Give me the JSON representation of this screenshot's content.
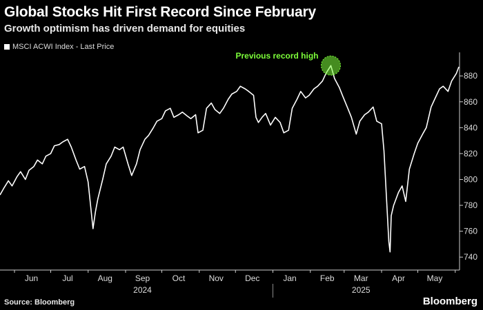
{
  "title": "Global Stocks Hit First Record Since February",
  "subtitle": "Growth optimism has driven demand for equities",
  "legend": {
    "label": "MSCI ACWI Index - Last Price"
  },
  "source": "Source: Bloomberg",
  "brand": "Bloomberg",
  "colors": {
    "background": "#000000",
    "line": "#ffffff",
    "annotation": "#7dff3a",
    "grid": "#3a3a3a"
  },
  "chart_data": {
    "type": "line",
    "title": "Global Stocks Hit First Record Since February",
    "subtitle": "Growth optimism has driven demand for equities",
    "xlabel": "",
    "ylabel": "",
    "ylim": [
      730,
      895
    ],
    "xlim": [
      "2024-05-20",
      "2025-06-04"
    ],
    "y_axis_position": "right",
    "y_ticks": [
      740,
      760,
      780,
      800,
      820,
      840,
      860,
      880
    ],
    "x_month_labels": [
      {
        "date": "2024-06-15",
        "label": "Jun"
      },
      {
        "date": "2024-07-15",
        "label": "Jul"
      },
      {
        "date": "2024-08-15",
        "label": "Aug"
      },
      {
        "date": "2024-09-15",
        "label": "Sep"
      },
      {
        "date": "2024-10-15",
        "label": "Oct"
      },
      {
        "date": "2024-11-15",
        "label": "Nov"
      },
      {
        "date": "2024-12-15",
        "label": "Dec"
      },
      {
        "date": "2025-01-15",
        "label": "Jan"
      },
      {
        "date": "2025-02-15",
        "label": "Feb"
      },
      {
        "date": "2025-03-15",
        "label": "Mar"
      },
      {
        "date": "2025-04-15",
        "label": "Apr"
      },
      {
        "date": "2025-05-15",
        "label": "May"
      }
    ],
    "x_year_labels": [
      {
        "date": "2024-09-15",
        "label": "2024"
      },
      {
        "date": "2025-03-15",
        "label": "2025"
      }
    ],
    "year_divider_date": "2025-01-01",
    "grid": "none",
    "legend_position": "top-left",
    "annotations": [
      {
        "text": "Previous record high",
        "date": "2025-02-18",
        "value": 888,
        "color": "#7dff3a"
      }
    ],
    "series": [
      {
        "name": "MSCI ACWI Index - Last Price",
        "points": [
          [
            "2024-05-20",
            788
          ],
          [
            "2024-05-23",
            793
          ],
          [
            "2024-05-27",
            799
          ],
          [
            "2024-05-30",
            795
          ],
          [
            "2024-06-03",
            802
          ],
          [
            "2024-06-06",
            806
          ],
          [
            "2024-06-10",
            800
          ],
          [
            "2024-06-13",
            807
          ],
          [
            "2024-06-17",
            810
          ],
          [
            "2024-06-20",
            815
          ],
          [
            "2024-06-24",
            812
          ],
          [
            "2024-06-27",
            818
          ],
          [
            "2024-07-01",
            820
          ],
          [
            "2024-07-04",
            826
          ],
          [
            "2024-07-08",
            827
          ],
          [
            "2024-07-11",
            829
          ],
          [
            "2024-07-15",
            831
          ],
          [
            "2024-07-18",
            825
          ],
          [
            "2024-07-22",
            815
          ],
          [
            "2024-07-25",
            808
          ],
          [
            "2024-07-29",
            810
          ],
          [
            "2024-08-01",
            798
          ],
          [
            "2024-08-05",
            762
          ],
          [
            "2024-08-07",
            775
          ],
          [
            "2024-08-09",
            785
          ],
          [
            "2024-08-13",
            800
          ],
          [
            "2024-08-16",
            812
          ],
          [
            "2024-08-20",
            818
          ],
          [
            "2024-08-23",
            825
          ],
          [
            "2024-08-27",
            823
          ],
          [
            "2024-08-30",
            825
          ],
          [
            "2024-09-03",
            812
          ],
          [
            "2024-09-06",
            803
          ],
          [
            "2024-09-10",
            812
          ],
          [
            "2024-09-13",
            823
          ],
          [
            "2024-09-17",
            831
          ],
          [
            "2024-09-20",
            834
          ],
          [
            "2024-09-24",
            840
          ],
          [
            "2024-09-27",
            845
          ],
          [
            "2024-10-01",
            847
          ],
          [
            "2024-10-04",
            853
          ],
          [
            "2024-10-08",
            855
          ],
          [
            "2024-10-11",
            848
          ],
          [
            "2024-10-15",
            850
          ],
          [
            "2024-10-18",
            852
          ],
          [
            "2024-10-22",
            849
          ],
          [
            "2024-10-25",
            847
          ],
          [
            "2024-10-29",
            850
          ],
          [
            "2024-10-31",
            836
          ],
          [
            "2024-11-04",
            838
          ],
          [
            "2024-11-07",
            855
          ],
          [
            "2024-11-11",
            859
          ],
          [
            "2024-11-14",
            854
          ],
          [
            "2024-11-18",
            851
          ],
          [
            "2024-11-21",
            855
          ],
          [
            "2024-11-25",
            862
          ],
          [
            "2024-11-28",
            866
          ],
          [
            "2024-12-02",
            868
          ],
          [
            "2024-12-05",
            872
          ],
          [
            "2024-12-09",
            870
          ],
          [
            "2024-12-12",
            868
          ],
          [
            "2024-12-16",
            865
          ],
          [
            "2024-12-18",
            848
          ],
          [
            "2024-12-20",
            844
          ],
          [
            "2024-12-23",
            848
          ],
          [
            "2024-12-26",
            851
          ],
          [
            "2024-12-30",
            842
          ],
          [
            "2025-01-03",
            848
          ],
          [
            "2025-01-07",
            844
          ],
          [
            "2025-01-10",
            836
          ],
          [
            "2025-01-14",
            838
          ],
          [
            "2025-01-17",
            855
          ],
          [
            "2025-01-21",
            862
          ],
          [
            "2025-01-24",
            868
          ],
          [
            "2025-01-28",
            863
          ],
          [
            "2025-01-31",
            865
          ],
          [
            "2025-02-04",
            870
          ],
          [
            "2025-02-07",
            872
          ],
          [
            "2025-02-11",
            876
          ],
          [
            "2025-02-14",
            882
          ],
          [
            "2025-02-18",
            888
          ],
          [
            "2025-02-21",
            878
          ],
          [
            "2025-02-25",
            871
          ],
          [
            "2025-02-28",
            864
          ],
          [
            "2025-03-04",
            855
          ],
          [
            "2025-03-07",
            848
          ],
          [
            "2025-03-11",
            835
          ],
          [
            "2025-03-14",
            845
          ],
          [
            "2025-03-18",
            850
          ],
          [
            "2025-03-21",
            852
          ],
          [
            "2025-03-25",
            856
          ],
          [
            "2025-03-28",
            845
          ],
          [
            "2025-04-01",
            843
          ],
          [
            "2025-04-03",
            822
          ],
          [
            "2025-04-07",
            752
          ],
          [
            "2025-04-08",
            744
          ],
          [
            "2025-04-09",
            772
          ],
          [
            "2025-04-11",
            780
          ],
          [
            "2025-04-15",
            790
          ],
          [
            "2025-04-18",
            795
          ],
          [
            "2025-04-21",
            783
          ],
          [
            "2025-04-24",
            808
          ],
          [
            "2025-04-28",
            820
          ],
          [
            "2025-05-01",
            828
          ],
          [
            "2025-05-05",
            835
          ],
          [
            "2025-05-08",
            840
          ],
          [
            "2025-05-12",
            856
          ],
          [
            "2025-05-15",
            862
          ],
          [
            "2025-05-19",
            870
          ],
          [
            "2025-05-22",
            872
          ],
          [
            "2025-05-26",
            868
          ],
          [
            "2025-05-29",
            876
          ],
          [
            "2025-06-02",
            882
          ],
          [
            "2025-06-04",
            887
          ]
        ]
      }
    ]
  }
}
